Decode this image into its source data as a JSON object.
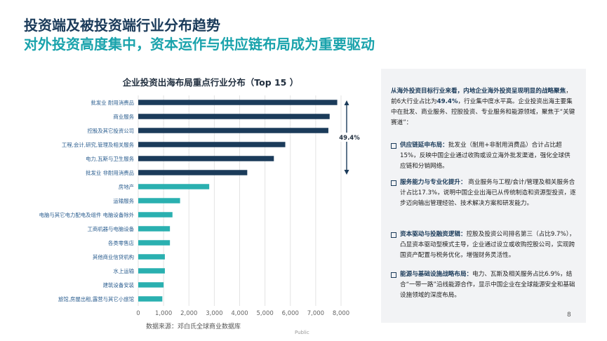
{
  "header": {
    "title": "投资端及被投资端行业分布趋势",
    "subtitle": "对外投资高度集中，资本运作与供应链布局成为重要驱动"
  },
  "chart_data": {
    "type": "bar",
    "orientation": "horizontal",
    "title": "企业投资出海布局重点行业分布（Top 15 ）",
    "categories": [
      "批发业 耐用消费品",
      "商业服务",
      "控股及其它投资公司",
      "工程,会计,研究,管理及相关服务",
      "电力,瓦斯与卫生服务",
      "批发业 非耐用消费品",
      "房地产",
      "运输服务",
      "电脑与其它电力配电及组件 电脑设备除外",
      "工商机器与电脑设备",
      "各类零售店",
      "其他商业信贷机构",
      "水上运输",
      "建筑设备安装",
      "旅馆,房屋出租,露营与其它小旅馆"
    ],
    "values": [
      7850,
      7550,
      7500,
      5800,
      5350,
      4300,
      2800,
      1650,
      1350,
      1250,
      1250,
      1050,
      1050,
      1000,
      950
    ],
    "highlight_count": 6,
    "colors": {
      "highlight": "#1b3b5a",
      "normal": "#2ab0b0",
      "grid": "#e3e3e3"
    },
    "xlim": [
      0,
      8000
    ],
    "xticks": [
      "0",
      "1,000",
      "2,000",
      "3,000",
      "4,000",
      "5,000",
      "6,000",
      "7,000",
      "8,000"
    ],
    "annotation": "49.4%",
    "source": "数据来源：邓白氏全球商业数据库"
  },
  "panel": {
    "intro_hl": "从海外投资目标行业来看，内地企业海外投资呈现明显的战略聚焦",
    "intro_mid": "，前6大行业占比为",
    "intro_pct": "49.4%",
    "intro_rest": "，行业集中度水平高。企业投资出海主要集中在批发、商业服务、控股投资、专业服务和能源领域，聚焦于“关键赛道”：",
    "items": [
      {
        "head": "供应链延申布局：",
        "body": "批发业（耐用+非耐用消费品）合计占比超 15%，反映中国企业通过收购或设立海外批发渠道，强化全球供应链和分销网络。"
      },
      {
        "head": "服务能力与专业化提升：",
        "body": " 商业服务与工程/会计/管理及相关服务合计占比17.3%，说明中国企业出海已从传统制造和资源型投资，逐步迈向输出管理经验、技术解决方案和研发能力。"
      },
      {
        "head": "资本驱动与投融资逻辑：",
        "body": "控股及投资公司排名第三（占比9.7%），凸显资本驱动型模式主导，企业通过设立或收购控股公司，实现跨国资产配置与税务优化，增强财务灵活性。"
      },
      {
        "head": "能源与基础设施战略布局：",
        "body": "电力、瓦斯及相关服务占比6.9%，结合“一带一路”沿线能源合作，显示中国企业在全球能源安全和基础设施领域的深度布局。"
      }
    ]
  },
  "footer": {
    "label": "Public",
    "page": "8"
  }
}
